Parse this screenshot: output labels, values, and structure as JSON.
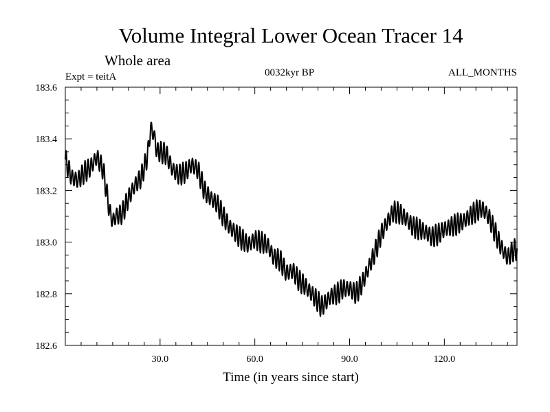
{
  "chart_data": {
    "type": "line",
    "title": "Volume Integral Lower Ocean Tracer 14",
    "subtitle": "Whole area",
    "info_left": "Expt = teitA",
    "info_center": "0032kyr BP",
    "info_right": "ALL_MONTHS",
    "xlabel": "Time (in years since start)",
    "ylabel": "",
    "xlim": [
      0,
      143
    ],
    "ylim": [
      182.6,
      183.6
    ],
    "x_ticks": [
      30,
      60,
      90,
      120
    ],
    "x_tick_labels": [
      "30.0",
      "60.0",
      "90.0",
      "120.0"
    ],
    "y_ticks": [
      182.6,
      182.8,
      183.0,
      183.2,
      183.4,
      183.6
    ],
    "y_tick_labels": [
      "182.6",
      "182.8",
      "183.0",
      "183.2",
      "183.4",
      "183.6"
    ],
    "seasonal_amplitude": 0.035,
    "series": [
      {
        "name": "Lower Ocean Tracer 14",
        "color": "#000000",
        "annual_mean": {
          "x": [
            0,
            2,
            4,
            6,
            8,
            10,
            12,
            13,
            14,
            15,
            16,
            18,
            20,
            22,
            24,
            26,
            27,
            28,
            29,
            30,
            32,
            34,
            36,
            38,
            40,
            42,
            44,
            46,
            48,
            50,
            52,
            55,
            58,
            60,
            62,
            64,
            66,
            68,
            70,
            72,
            74,
            76,
            78,
            80,
            81,
            82,
            84,
            86,
            88,
            90,
            92,
            94,
            96,
            98,
            100,
            102,
            104,
            106,
            108,
            110,
            112,
            114,
            116,
            118,
            120,
            122,
            124,
            126,
            128,
            130,
            132,
            134,
            136,
            138,
            140,
            142,
            143
          ],
          "y": [
            183.32,
            183.25,
            183.24,
            183.27,
            183.29,
            183.33,
            183.28,
            183.2,
            183.12,
            183.08,
            183.1,
            183.11,
            183.17,
            183.22,
            183.25,
            183.33,
            183.44,
            183.42,
            183.35,
            183.35,
            183.34,
            183.28,
            183.26,
            183.27,
            183.3,
            183.28,
            183.2,
            183.17,
            183.15,
            183.1,
            183.06,
            183.02,
            182.99,
            183.01,
            183.0,
            182.99,
            182.94,
            182.93,
            182.88,
            182.89,
            182.85,
            182.83,
            182.8,
            182.77,
            182.75,
            182.76,
            182.79,
            182.8,
            182.82,
            182.82,
            182.8,
            182.84,
            182.9,
            182.96,
            183.03,
            183.08,
            183.12,
            183.11,
            183.09,
            183.06,
            183.05,
            183.04,
            183.02,
            183.03,
            183.05,
            183.06,
            183.07,
            183.08,
            183.1,
            183.12,
            183.13,
            183.1,
            183.04,
            182.98,
            182.94,
            182.97,
            182.97
          ]
        }
      }
    ]
  }
}
